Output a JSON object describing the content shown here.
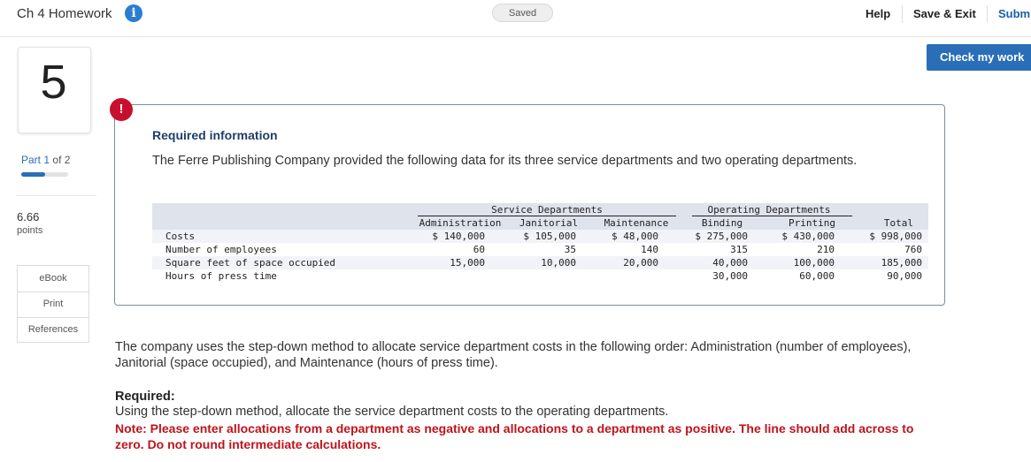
{
  "header": {
    "title": "Ch 4 Homework",
    "info_icon": "info-icon",
    "saved": "Saved",
    "help": "Help",
    "save_exit": "Save & Exit",
    "submit": "Subm",
    "check_work": "Check my work"
  },
  "rail": {
    "question_number": "5",
    "part_label": "Part",
    "part_current": "1",
    "part_total": "of 2",
    "part_progress": 0.5,
    "points_value": "6.66",
    "points_label": "points",
    "ebook": "eBook",
    "print": "Print",
    "references": "References"
  },
  "info": {
    "alert_glyph": "!",
    "heading": "Required information",
    "intro": "The Ferre Publishing Company provided the following data for its three service departments and two operating departments."
  },
  "table": {
    "group_service": "Service Departments",
    "group_operating": "Operating Departments",
    "columns": [
      "Administration",
      "Janitorial",
      "Maintenance",
      "Binding",
      "Printing",
      "Total"
    ],
    "rows": [
      {
        "label": "Costs",
        "values": [
          "$ 140,000",
          "$ 105,000",
          "$ 48,000",
          "$ 275,000",
          "$ 430,000",
          "$ 998,000"
        ]
      },
      {
        "label": "Number of employees",
        "values": [
          "60",
          "35",
          "140",
          "315",
          "210",
          "760"
        ]
      },
      {
        "label": "Square feet of space occupied",
        "values": [
          "15,000",
          "10,000",
          "20,000",
          "40,000",
          "100,000",
          "185,000"
        ]
      },
      {
        "label": "Hours of press time",
        "values": [
          "",
          "",
          "",
          "30,000",
          "60,000",
          "90,000"
        ]
      }
    ]
  },
  "method_text": "The company uses the step-down method to allocate service department costs in the following order: Administration (number of employees), Janitorial (space occupied), and Maintenance (hours of press time).",
  "required": {
    "heading": "Required:",
    "text": "Using the step-down method, allocate the service department costs to the operating departments.",
    "note": "Note: Please enter allocations from a department as negative and allocations to a department as positive. The line should add across to zero. Do not round intermediate calculations."
  }
}
